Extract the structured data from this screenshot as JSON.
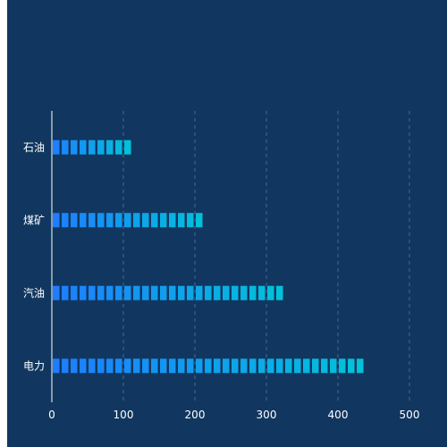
{
  "chart_data": {
    "type": "bar",
    "orientation": "horizontal",
    "style": "segmented",
    "categories": [
      "电力",
      "汽油",
      "煤矿",
      "石油"
    ],
    "values": [
      445,
      333,
      222,
      111
    ],
    "xlim": [
      0,
      500
    ],
    "x_ticks": [
      "0",
      "100",
      "200",
      "300",
      "400",
      "500"
    ],
    "grid": "vertical-dashed",
    "colors": {
      "background": "#113760",
      "bar_start": "#1f7cff",
      "bar_end": "#00c4d8",
      "grid": "#3f6c8f",
      "axis": "#ffffff",
      "text": "#ffffff"
    }
  }
}
